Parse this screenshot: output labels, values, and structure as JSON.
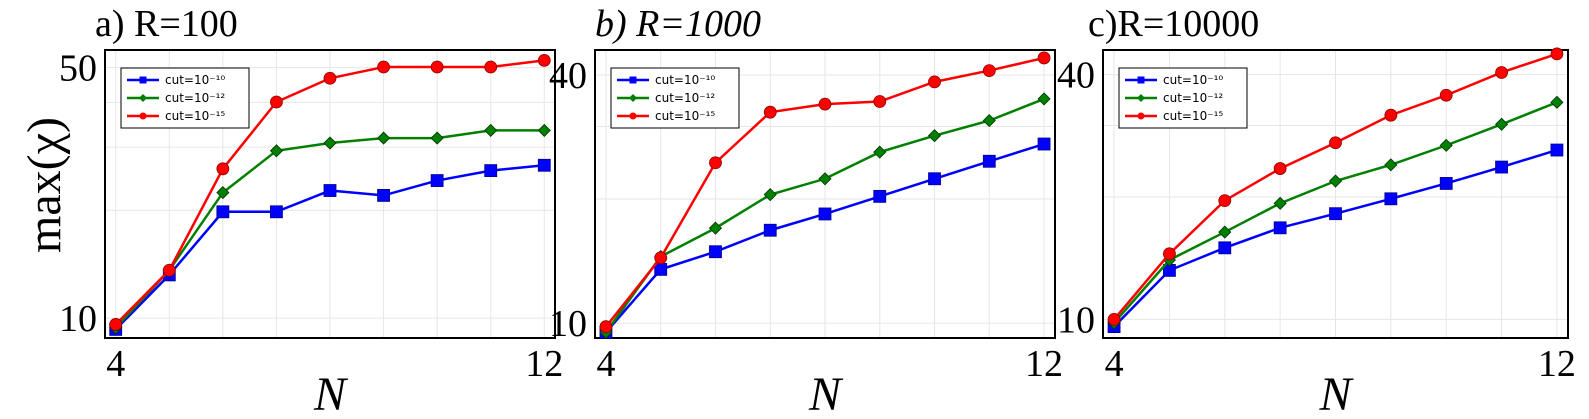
{
  "ylabel": "max(χ)",
  "colors": {
    "cut10": "#0000ff",
    "cut12": "#008000",
    "cut15": "#ff0000"
  },
  "chart_data": [
    {
      "type": "line",
      "title": "a) R=100",
      "title_italic": false,
      "xlabel": "N",
      "x": [
        4,
        5,
        6,
        7,
        8,
        9,
        10,
        11,
        12
      ],
      "xlim": [
        3.8,
        12.2
      ],
      "ylim": [
        8.8,
        56
      ],
      "y_ticks": [
        10,
        50
      ],
      "x_ticks": [
        4,
        12
      ],
      "legend_position": "top-left",
      "series": [
        {
          "name": "cut=10⁻¹⁰",
          "marker": "square",
          "color": "#0000ff",
          "values": [
            9.3,
            13.2,
            19.8,
            19.8,
            22.7,
            22.0,
            24.2,
            25.8,
            26.7
          ]
        },
        {
          "name": "cut=10⁻¹²",
          "marker": "diamond",
          "color": "#008000",
          "values": [
            9.4,
            13.6,
            22.4,
            29.3,
            30.8,
            31.8,
            31.8,
            33.4,
            33.4
          ]
        },
        {
          "name": "cut=10⁻¹⁵",
          "marker": "circle",
          "color": "#ff0000",
          "values": [
            9.6,
            13.6,
            26.1,
            40.1,
            46.7,
            50.2,
            50.2,
            50.2,
            52.4
          ]
        }
      ]
    },
    {
      "type": "line",
      "title": "b) R=1000",
      "title_italic": true,
      "xlabel": "N",
      "x": [
        4,
        5,
        6,
        7,
        8,
        9,
        10,
        11,
        12
      ],
      "xlim": [
        3.8,
        12.2
      ],
      "ylim": [
        9.2,
        46
      ],
      "y_ticks": [
        10,
        40
      ],
      "x_ticks": [
        4,
        12
      ],
      "legend_position": "top-left",
      "series": [
        {
          "name": "cut=10⁻¹⁰",
          "marker": "square",
          "color": "#0000ff",
          "values": [
            9.5,
            13.5,
            14.9,
            16.8,
            18.4,
            20.3,
            22.4,
            24.7,
            27.2
          ]
        },
        {
          "name": "cut=10⁻¹²",
          "marker": "diamond",
          "color": "#008000",
          "values": [
            9.5,
            14.5,
            17.0,
            20.5,
            22.4,
            26.0,
            28.5,
            31.0,
            35.0
          ]
        },
        {
          "name": "cut=10⁻¹⁵",
          "marker": "circle",
          "color": "#ff0000",
          "values": [
            9.8,
            14.4,
            24.5,
            32.5,
            34.0,
            34.5,
            38.5,
            41.0,
            44.0
          ]
        }
      ]
    },
    {
      "type": "line",
      "title": "c)R=10000",
      "title_italic": false,
      "xlabel": "N",
      "x": [
        4,
        5,
        6,
        7,
        8,
        9,
        10,
        11,
        12
      ],
      "xlim": [
        3.8,
        12.2
      ],
      "ylim": [
        9.0,
        46
      ],
      "y_ticks": [
        10,
        40
      ],
      "x_ticks": [
        4,
        12
      ],
      "legend_position": "top-left",
      "series": [
        {
          "name": "cut=10⁻¹⁰",
          "marker": "square",
          "color": "#0000ff",
          "values": [
            9.6,
            13.2,
            15.0,
            16.8,
            18.2,
            19.8,
            21.6,
            23.7,
            26.1
          ]
        },
        {
          "name": "cut=10⁻¹²",
          "marker": "diamond",
          "color": "#008000",
          "values": [
            9.8,
            14.0,
            16.4,
            19.3,
            21.9,
            24.0,
            26.8,
            30.2,
            34.2
          ]
        },
        {
          "name": "cut=10⁻¹⁵",
          "marker": "circle",
          "color": "#ff0000",
          "values": [
            10.0,
            14.5,
            19.6,
            23.5,
            27.2,
            31.8,
            35.6,
            40.5,
            45.0
          ]
        }
      ]
    }
  ]
}
